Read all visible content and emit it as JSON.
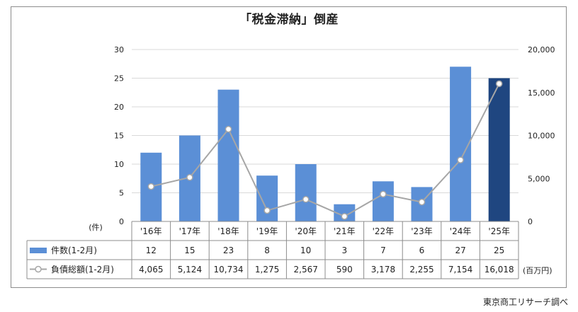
{
  "source_note": "東京商工リサーチ調べ",
  "colors": {
    "bar": "#5b8fd6",
    "bar_highlight": "#1f4680",
    "line": "#a6a6a6",
    "grid": "#d9d9d9",
    "axis": "#8c8c8c"
  },
  "chart_data": {
    "type": "bar",
    "title": "「税金滞納」倒産",
    "categories": [
      "'16年",
      "'17年",
      "'18年",
      "'19年",
      "'20年",
      "'21年",
      "'22年",
      "'23年",
      "'24年",
      "'25年"
    ],
    "left_axis": {
      "unit_label": "(件)",
      "ylim": [
        0,
        30
      ],
      "ticks": [
        "0",
        "5",
        "10",
        "15",
        "20",
        "25",
        "30"
      ]
    },
    "right_axis": {
      "unit_label": "(百万円)",
      "ylim": [
        0,
        20000
      ],
      "ticks": [
        "0",
        "5,000",
        "10,000",
        "15,000",
        "20,000"
      ]
    },
    "series": [
      {
        "name": "件数(1-2月)",
        "kind": "bar",
        "axis": "left",
        "values": [
          12,
          15,
          23,
          8,
          10,
          3,
          7,
          6,
          27,
          25
        ],
        "labels": [
          "12",
          "15",
          "23",
          "8",
          "10",
          "3",
          "7",
          "6",
          "27",
          "25"
        ],
        "highlight_last": true
      },
      {
        "name": "負債総額(1-2月)",
        "kind": "line",
        "axis": "right",
        "values": [
          4065,
          5124,
          10734,
          1275,
          2567,
          590,
          3178,
          2255,
          7154,
          16018
        ],
        "labels": [
          "4,065",
          "5,124",
          "10,734",
          "1,275",
          "2,567",
          "590",
          "3,178",
          "2,255",
          "7,154",
          "16,018"
        ]
      }
    ],
    "grid": true,
    "legend_position": "table-left"
  }
}
